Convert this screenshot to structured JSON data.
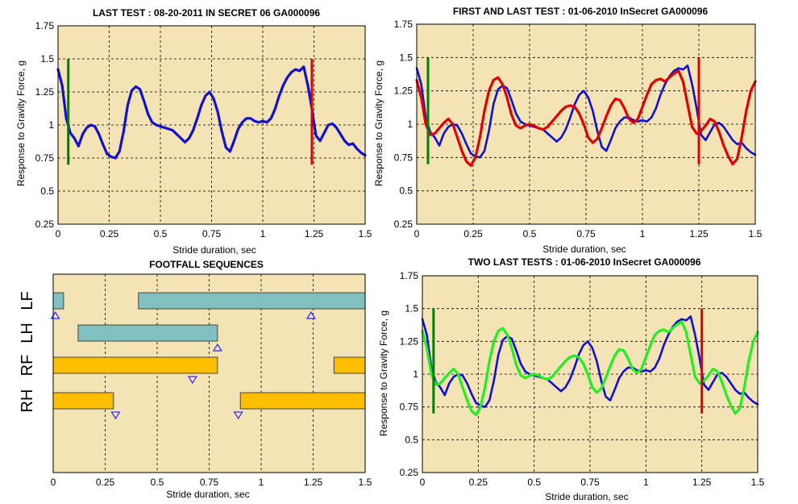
{
  "chart_data": [
    {
      "type": "line",
      "title": "LAST TEST : 08-20-2011 IN SECRET 06 GA000096",
      "xlabel": "Stride duration, sec",
      "ylabel": "Response to Gravity Force, g",
      "xlim": [
        0,
        1.5
      ],
      "ylim": [
        0.25,
        1.75
      ],
      "xticks": [
        "0",
        "0.25",
        "0.5",
        "0.75",
        "1",
        "1.25",
        "1.5"
      ],
      "yticks": [
        "0.25",
        "0.5",
        "0.75",
        "1",
        "1.25",
        "1.5",
        "1.75"
      ],
      "grid": true,
      "background": "#f3e3b5",
      "markers": [
        {
          "x": 0.05,
          "y_range": [
            0.7,
            1.5
          ],
          "color": "#008000"
        },
        {
          "x": 1.24,
          "y_range": [
            0.7,
            1.5
          ],
          "color": "#e00000"
        }
      ],
      "series": [
        {
          "color": "#1010d0",
          "x": [
            0,
            0.02,
            0.04,
            0.06,
            0.08,
            0.1,
            0.12,
            0.14,
            0.16,
            0.18,
            0.2,
            0.22,
            0.24,
            0.26,
            0.28,
            0.3,
            0.32,
            0.34,
            0.36,
            0.38,
            0.4,
            0.42,
            0.44,
            0.46,
            0.48,
            0.5,
            0.52,
            0.54,
            0.56,
            0.58,
            0.6,
            0.62,
            0.64,
            0.66,
            0.68,
            0.7,
            0.72,
            0.74,
            0.76,
            0.78,
            0.8,
            0.82,
            0.84,
            0.86,
            0.88,
            0.9,
            0.92,
            0.94,
            0.96,
            0.98,
            1.0,
            1.02,
            1.04,
            1.06,
            1.08,
            1.1,
            1.12,
            1.14,
            1.16,
            1.18,
            1.2,
            1.22,
            1.24,
            1.26,
            1.28,
            1.3,
            1.32,
            1.34,
            1.36,
            1.38,
            1.4,
            1.42,
            1.44,
            1.46,
            1.48,
            1.5
          ],
          "y": [
            1.42,
            1.3,
            1.05,
            0.94,
            0.9,
            0.84,
            0.93,
            0.98,
            1.0,
            0.99,
            0.93,
            0.85,
            0.78,
            0.76,
            0.75,
            0.8,
            0.95,
            1.15,
            1.26,
            1.29,
            1.27,
            1.18,
            1.08,
            1.02,
            1.0,
            0.99,
            0.98,
            0.97,
            0.96,
            0.93,
            0.9,
            0.87,
            0.9,
            0.96,
            1.05,
            1.15,
            1.22,
            1.25,
            1.2,
            1.1,
            0.95,
            0.83,
            0.8,
            0.88,
            0.97,
            1.02,
            1.05,
            1.05,
            1.03,
            1.02,
            1.03,
            1.02,
            1.05,
            1.12,
            1.22,
            1.3,
            1.36,
            1.4,
            1.42,
            1.41,
            1.44,
            1.3,
            1.12,
            0.92,
            0.88,
            0.94,
            1.0,
            1.01,
            0.98,
            0.93,
            0.88,
            0.85,
            0.86,
            0.82,
            0.79,
            0.77
          ]
        }
      ]
    },
    {
      "type": "line",
      "title": "FIRST AND LAST TEST : 01-06-2010 InSecret GA000096",
      "xlabel": "Stride duration, sec",
      "ylabel": "Response to Gravity Force, g",
      "xlim": [
        0,
        1.5
      ],
      "ylim": [
        0.25,
        1.75
      ],
      "xticks": [
        "0",
        "0.25",
        "0.5",
        "0.75",
        "1",
        "1.25",
        "1.5"
      ],
      "yticks": [
        "0.25",
        "0.5",
        "0.75",
        "1",
        "1.25",
        "1.5",
        "1.75"
      ],
      "grid": true,
      "background": "#f3e3b5",
      "markers": [
        {
          "x": 0.05,
          "y_range": [
            0.7,
            1.5
          ],
          "color": "#008000"
        },
        {
          "x": 1.25,
          "y_range": [
            0.7,
            1.5
          ],
          "color": "#e00000"
        }
      ],
      "series": [
        {
          "color": "#1010d0",
          "x": [
            0,
            0.02,
            0.04,
            0.06,
            0.08,
            0.1,
            0.12,
            0.14,
            0.16,
            0.18,
            0.2,
            0.22,
            0.24,
            0.26,
            0.28,
            0.3,
            0.32,
            0.34,
            0.36,
            0.38,
            0.4,
            0.42,
            0.44,
            0.46,
            0.48,
            0.5,
            0.52,
            0.54,
            0.56,
            0.58,
            0.6,
            0.62,
            0.64,
            0.66,
            0.68,
            0.7,
            0.72,
            0.74,
            0.76,
            0.78,
            0.8,
            0.82,
            0.84,
            0.86,
            0.88,
            0.9,
            0.92,
            0.94,
            0.96,
            0.98,
            1.0,
            1.02,
            1.04,
            1.06,
            1.08,
            1.1,
            1.12,
            1.14,
            1.16,
            1.18,
            1.2,
            1.22,
            1.24,
            1.26,
            1.28,
            1.3,
            1.32,
            1.34,
            1.36,
            1.38,
            1.4,
            1.42,
            1.44,
            1.46,
            1.48,
            1.5
          ],
          "y": [
            1.42,
            1.3,
            1.05,
            0.94,
            0.9,
            0.84,
            0.93,
            0.98,
            1.0,
            0.99,
            0.93,
            0.85,
            0.78,
            0.76,
            0.75,
            0.8,
            0.95,
            1.15,
            1.26,
            1.29,
            1.27,
            1.18,
            1.08,
            1.02,
            1.0,
            0.99,
            0.98,
            0.97,
            0.96,
            0.93,
            0.9,
            0.87,
            0.9,
            0.96,
            1.05,
            1.15,
            1.22,
            1.25,
            1.2,
            1.1,
            0.95,
            0.83,
            0.8,
            0.88,
            0.97,
            1.02,
            1.05,
            1.05,
            1.03,
            1.02,
            1.03,
            1.02,
            1.05,
            1.12,
            1.22,
            1.3,
            1.36,
            1.4,
            1.42,
            1.41,
            1.44,
            1.3,
            1.12,
            0.92,
            0.88,
            0.94,
            1.0,
            1.01,
            0.98,
            0.93,
            0.88,
            0.85,
            0.86,
            0.82,
            0.79,
            0.77
          ]
        },
        {
          "color": "#e00000",
          "x": [
            0,
            0.02,
            0.04,
            0.06,
            0.08,
            0.1,
            0.12,
            0.14,
            0.16,
            0.18,
            0.2,
            0.22,
            0.24,
            0.26,
            0.28,
            0.3,
            0.32,
            0.34,
            0.36,
            0.38,
            0.4,
            0.42,
            0.44,
            0.46,
            0.48,
            0.5,
            0.52,
            0.54,
            0.56,
            0.58,
            0.6,
            0.62,
            0.64,
            0.66,
            0.68,
            0.7,
            0.72,
            0.74,
            0.76,
            0.78,
            0.8,
            0.82,
            0.84,
            0.86,
            0.88,
            0.9,
            0.92,
            0.94,
            0.96,
            0.98,
            1.0,
            1.02,
            1.04,
            1.06,
            1.08,
            1.1,
            1.12,
            1.14,
            1.16,
            1.18,
            1.2,
            1.22,
            1.24,
            1.26,
            1.28,
            1.3,
            1.32,
            1.34,
            1.36,
            1.38,
            1.4,
            1.42,
            1.44,
            1.46,
            1.48,
            1.5
          ],
          "y": [
            1.33,
            1.2,
            1.0,
            0.92,
            0.93,
            0.97,
            1.01,
            1.04,
            1.0,
            0.9,
            0.8,
            0.72,
            0.69,
            0.75,
            0.9,
            1.1,
            1.25,
            1.33,
            1.35,
            1.3,
            1.2,
            1.07,
            0.99,
            0.97,
            0.99,
            1.0,
            0.99,
            0.97,
            0.96,
            0.98,
            1.02,
            1.06,
            1.1,
            1.13,
            1.14,
            1.13,
            1.08,
            1.0,
            0.9,
            0.86,
            0.89,
            0.97,
            1.06,
            1.14,
            1.19,
            1.18,
            1.12,
            1.04,
            1.01,
            1.04,
            1.13,
            1.22,
            1.3,
            1.33,
            1.34,
            1.32,
            1.35,
            1.38,
            1.4,
            1.32,
            1.15,
            0.98,
            0.93,
            0.95,
            0.99,
            1.04,
            1.02,
            0.94,
            0.84,
            0.76,
            0.7,
            0.74,
            0.9,
            1.1,
            1.25,
            1.32
          ]
        }
      ]
    },
    {
      "type": "gantt",
      "title": "FOOTFALL SEQUENCES",
      "xlabel": "Stride duration, sec",
      "xlim": [
        0,
        1.5
      ],
      "xticks": [
        "0",
        "0.25",
        "0.5",
        "0.75",
        "1",
        "1.25",
        "1.5"
      ],
      "grid": true,
      "background": "#f3e3b5",
      "rows": [
        {
          "label": "LF",
          "color": "#80c0c0",
          "bars": [
            [
              0,
              0.05
            ],
            [
              0.41,
              1.5
            ]
          ],
          "triangles": [
            {
              "x": 0.01,
              "dir": "up"
            },
            {
              "x": 1.24,
              "dir": "up"
            }
          ]
        },
        {
          "label": "LH",
          "color": "#80c0c0",
          "bars": [
            [
              0.12,
              0.79
            ]
          ],
          "triangles": [
            {
              "x": 0.79,
              "dir": "up"
            }
          ]
        },
        {
          "label": "RF",
          "color": "#ffbf00",
          "bars": [
            [
              0,
              0.79
            ],
            [
              1.35,
              1.5
            ]
          ],
          "triangles": [
            {
              "x": 0.67,
              "dir": "down"
            }
          ]
        },
        {
          "label": "RH",
          "color": "#ffbf00",
          "bars": [
            [
              0,
              0.29
            ],
            [
              0.9,
              1.5
            ]
          ],
          "triangles": [
            {
              "x": 0.3,
              "dir": "down"
            },
            {
              "x": 0.89,
              "dir": "down"
            }
          ]
        }
      ]
    },
    {
      "type": "line",
      "title": "TWO LAST TESTS : 01-06-2010 InSecret GA000096",
      "xlabel": "Stride duration, sec",
      "ylabel": "Response to Gravity Force, g",
      "xlim": [
        0,
        1.5
      ],
      "ylim": [
        0.25,
        1.75
      ],
      "xticks": [
        "0",
        "0.25",
        "0.5",
        "0.75",
        "1",
        "1.25",
        "1.5"
      ],
      "yticks": [
        "0.25",
        "0.5",
        "0.75",
        "1",
        "1.25",
        "1.5",
        "1.75"
      ],
      "grid": true,
      "background": "#f3e3b5",
      "markers": [
        {
          "x": 0.05,
          "y_range": [
            0.7,
            1.5
          ],
          "color": "#008000"
        },
        {
          "x": 1.25,
          "y_range": [
            0.7,
            1.5
          ],
          "color": "#e00000"
        }
      ],
      "series": [
        {
          "color": "#1010d0",
          "x": [
            0,
            0.02,
            0.04,
            0.06,
            0.08,
            0.1,
            0.12,
            0.14,
            0.16,
            0.18,
            0.2,
            0.22,
            0.24,
            0.26,
            0.28,
            0.3,
            0.32,
            0.34,
            0.36,
            0.38,
            0.4,
            0.42,
            0.44,
            0.46,
            0.48,
            0.5,
            0.52,
            0.54,
            0.56,
            0.58,
            0.6,
            0.62,
            0.64,
            0.66,
            0.68,
            0.7,
            0.72,
            0.74,
            0.76,
            0.78,
            0.8,
            0.82,
            0.84,
            0.86,
            0.88,
            0.9,
            0.92,
            0.94,
            0.96,
            0.98,
            1.0,
            1.02,
            1.04,
            1.06,
            1.08,
            1.1,
            1.12,
            1.14,
            1.16,
            1.18,
            1.2,
            1.22,
            1.24,
            1.26,
            1.28,
            1.3,
            1.32,
            1.34,
            1.36,
            1.38,
            1.4,
            1.42,
            1.44,
            1.46,
            1.48,
            1.5
          ],
          "y": [
            1.42,
            1.3,
            1.05,
            0.94,
            0.9,
            0.84,
            0.93,
            0.98,
            1.0,
            0.99,
            0.93,
            0.85,
            0.78,
            0.76,
            0.75,
            0.8,
            0.95,
            1.15,
            1.26,
            1.29,
            1.27,
            1.18,
            1.08,
            1.02,
            1.0,
            0.99,
            0.98,
            0.97,
            0.96,
            0.93,
            0.9,
            0.87,
            0.9,
            0.96,
            1.05,
            1.15,
            1.22,
            1.25,
            1.2,
            1.1,
            0.95,
            0.83,
            0.8,
            0.88,
            0.97,
            1.02,
            1.05,
            1.05,
            1.03,
            1.02,
            1.03,
            1.02,
            1.05,
            1.12,
            1.22,
            1.3,
            1.36,
            1.4,
            1.42,
            1.41,
            1.44,
            1.3,
            1.12,
            0.92,
            0.88,
            0.94,
            1.0,
            1.01,
            0.98,
            0.93,
            0.88,
            0.85,
            0.86,
            0.82,
            0.79,
            0.77
          ]
        },
        {
          "color": "#22ee22",
          "x": [
            0,
            0.02,
            0.04,
            0.06,
            0.08,
            0.1,
            0.12,
            0.14,
            0.16,
            0.18,
            0.2,
            0.22,
            0.24,
            0.26,
            0.28,
            0.3,
            0.32,
            0.34,
            0.36,
            0.38,
            0.4,
            0.42,
            0.44,
            0.46,
            0.48,
            0.5,
            0.52,
            0.54,
            0.56,
            0.58,
            0.6,
            0.62,
            0.64,
            0.66,
            0.68,
            0.7,
            0.72,
            0.74,
            0.76,
            0.78,
            0.8,
            0.82,
            0.84,
            0.86,
            0.88,
            0.9,
            0.92,
            0.94,
            0.96,
            0.98,
            1.0,
            1.02,
            1.04,
            1.06,
            1.08,
            1.1,
            1.12,
            1.14,
            1.16,
            1.18,
            1.2,
            1.22,
            1.24,
            1.26,
            1.28,
            1.3,
            1.32,
            1.34,
            1.36,
            1.38,
            1.4,
            1.42,
            1.44,
            1.46,
            1.48,
            1.5
          ],
          "y": [
            1.33,
            1.2,
            1.0,
            0.92,
            0.93,
            0.97,
            1.01,
            1.04,
            1.0,
            0.9,
            0.8,
            0.72,
            0.69,
            0.75,
            0.9,
            1.1,
            1.25,
            1.33,
            1.35,
            1.3,
            1.2,
            1.07,
            0.99,
            0.97,
            0.99,
            1.0,
            0.99,
            0.97,
            0.96,
            0.98,
            1.02,
            1.06,
            1.1,
            1.13,
            1.14,
            1.13,
            1.08,
            1.0,
            0.9,
            0.86,
            0.89,
            0.97,
            1.06,
            1.14,
            1.19,
            1.18,
            1.12,
            1.04,
            1.01,
            1.04,
            1.13,
            1.22,
            1.3,
            1.33,
            1.34,
            1.32,
            1.35,
            1.38,
            1.4,
            1.32,
            1.15,
            0.98,
            0.93,
            0.95,
            0.99,
            1.04,
            1.02,
            0.94,
            0.84,
            0.76,
            0.7,
            0.74,
            0.9,
            1.1,
            1.25,
            1.32
          ]
        }
      ]
    }
  ]
}
